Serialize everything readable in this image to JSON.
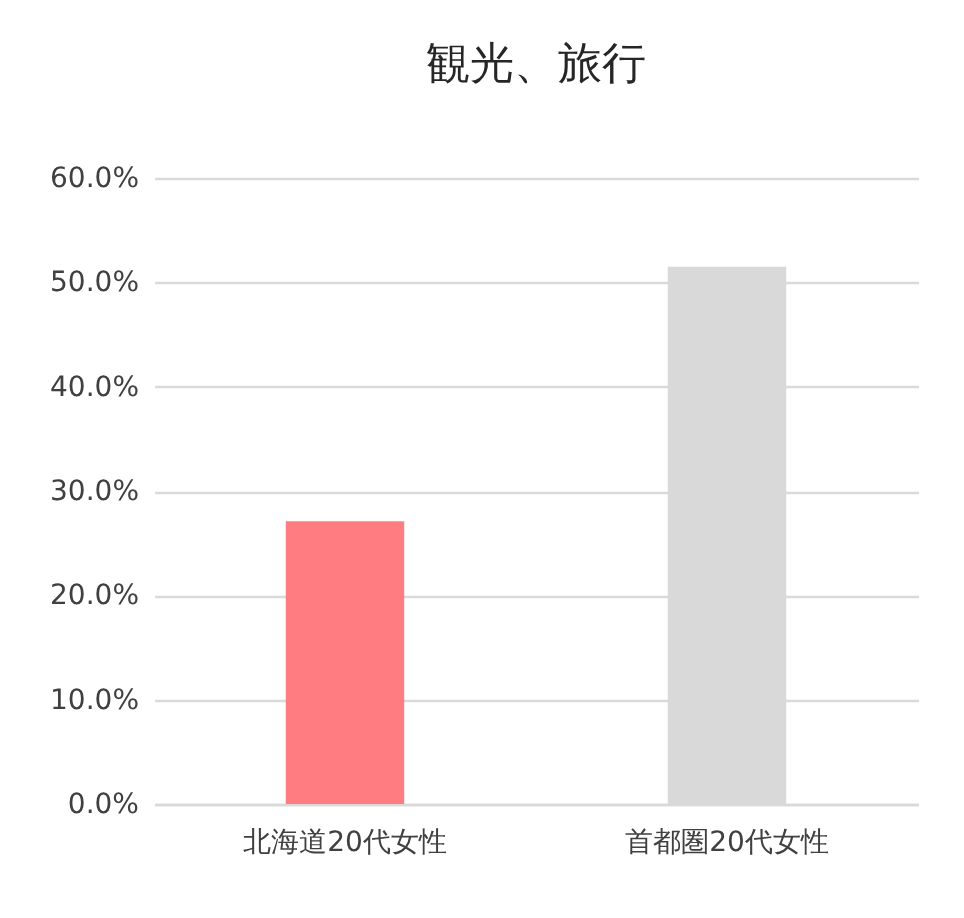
{
  "chart_data": {
    "type": "bar",
    "title": "観光、旅行",
    "categories": [
      "北海道20代女性",
      "首都圏20代女性"
    ],
    "values": [
      27.1,
      51.5
    ],
    "colors": [
      "#ff7c80",
      "#d9d9d9"
    ],
    "ylim": [
      0,
      60
    ],
    "yticks": [
      {
        "value": 0,
        "label": "0.0%"
      },
      {
        "value": 10,
        "label": "10.0%"
      },
      {
        "value": 20,
        "label": "20.0%"
      },
      {
        "value": 30,
        "label": "30.0%"
      },
      {
        "value": 40,
        "label": "40.0%"
      },
      {
        "value": 50,
        "label": "50.0%"
      },
      {
        "value": 60,
        "label": "60.0%"
      }
    ],
    "grid": "y"
  }
}
